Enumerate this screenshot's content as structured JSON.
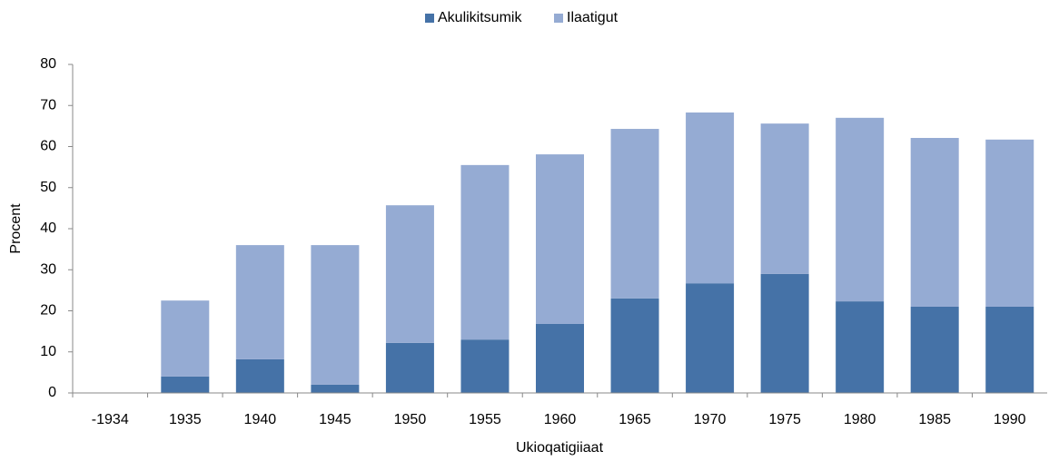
{
  "chart_data": {
    "type": "stacked_bar",
    "categories": [
      "-1934",
      "1935",
      "1940",
      "1945",
      "1950",
      "1955",
      "1960",
      "1965",
      "1970",
      "1975",
      "1980",
      "1985",
      "1990"
    ],
    "series": [
      {
        "name": "Akulikitsumik",
        "color": "#4572a7",
        "values": [
          0,
          4.0,
          8.2,
          2.0,
          12.2,
          13.0,
          16.8,
          23.0,
          26.7,
          29.0,
          22.3,
          21.0,
          21.0
        ]
      },
      {
        "name": "Ilaatigut",
        "color": "#95abd3",
        "values": [
          0,
          18.5,
          27.8,
          34.0,
          33.5,
          42.5,
          41.3,
          41.3,
          41.6,
          36.6,
          44.7,
          41.1,
          40.7
        ]
      }
    ],
    "ylim": [
      0,
      80
    ],
    "yticks": [
      0,
      10,
      20,
      30,
      40,
      50,
      60,
      70,
      80
    ],
    "y_label": "Procent",
    "x_label": "Ukioqatigiiaat",
    "grid": false,
    "legend": "top"
  }
}
